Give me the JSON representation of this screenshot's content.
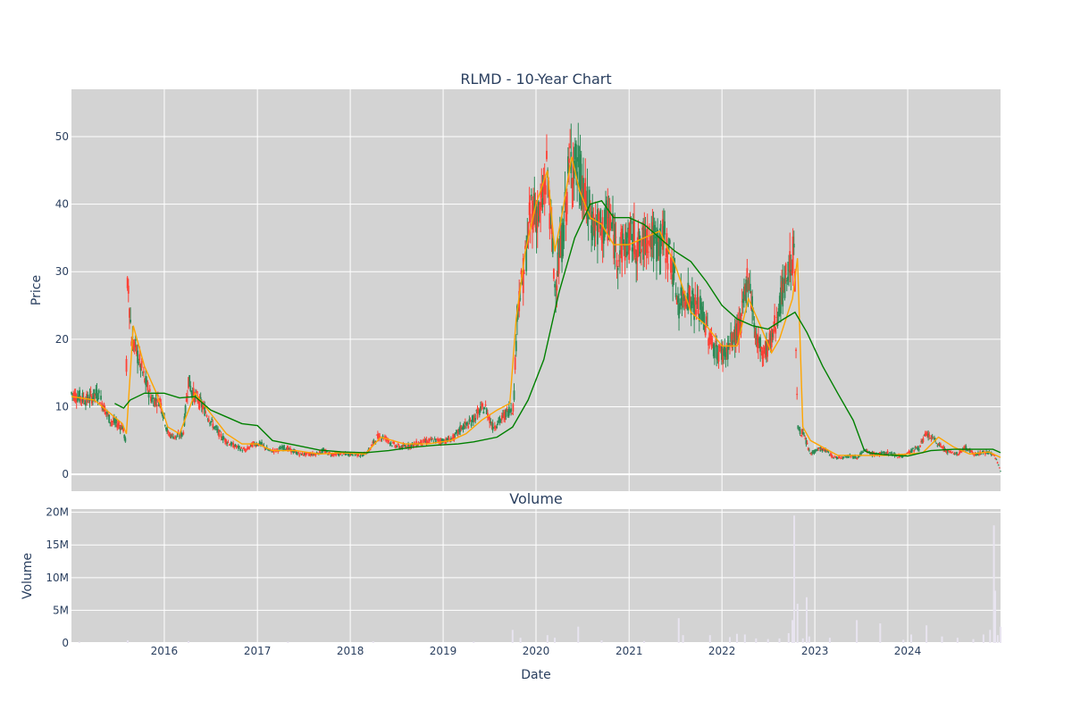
{
  "chart_data": [
    {
      "type": "line",
      "title": "RLMD - 10-Year Chart",
      "xlabel": "",
      "ylabel": "Price",
      "xlim": [
        "2015-01-01",
        "2024-12-31"
      ],
      "ylim": [
        -2.5,
        57
      ],
      "yticks": [
        0,
        10,
        20,
        30,
        40,
        50
      ],
      "grid": true,
      "colors": {
        "up": "#2e8b57",
        "down": "#ff4136",
        "sma50": "#ffa500",
        "sma200": "#008000",
        "background": "#d3d3d3"
      },
      "series": [
        {
          "key": "price",
          "x": [
            "2015-01-01",
            "2015-03-01",
            "2015-04-15",
            "2015-06-01",
            "2015-07-20",
            "2015-08-01",
            "2015-08-10",
            "2015-08-25",
            "2015-09-15",
            "2015-10-15",
            "2015-11-15",
            "2015-12-15",
            "2016-01-15",
            "2016-02-15",
            "2016-03-15",
            "2016-04-05",
            "2016-04-20",
            "2016-05-15",
            "2016-06-15",
            "2016-07-15",
            "2016-08-15",
            "2016-09-15",
            "2016-10-15",
            "2016-11-15",
            "2016-12-15",
            "2017-01-15",
            "2017-02-15",
            "2017-03-15",
            "2017-04-15",
            "2017-05-15",
            "2017-06-15",
            "2017-07-15",
            "2017-08-15",
            "2017-09-15",
            "2017-10-15",
            "2017-11-15",
            "2017-12-15",
            "2018-01-15",
            "2018-02-15",
            "2018-03-15",
            "2018-04-15",
            "2018-05-15",
            "2018-06-15",
            "2018-07-15",
            "2018-08-15",
            "2018-09-15",
            "2018-10-15",
            "2018-11-15",
            "2018-12-15",
            "2019-01-15",
            "2019-02-15",
            "2019-03-15",
            "2019-04-15",
            "2019-05-15",
            "2019-06-15",
            "2019-07-15",
            "2019-08-15",
            "2019-09-15",
            "2019-10-05",
            "2019-10-20",
            "2019-11-15",
            "2019-12-15",
            "2020-01-15",
            "2020-02-15",
            "2020-03-15",
            "2020-04-15",
            "2020-05-15",
            "2020-06-15",
            "2020-07-15",
            "2020-08-15",
            "2020-09-15",
            "2020-10-15",
            "2020-11-15",
            "2020-12-15",
            "2021-01-15",
            "2021-02-15",
            "2021-03-15",
            "2021-04-15",
            "2021-05-15",
            "2021-06-15",
            "2021-07-15",
            "2021-08-15",
            "2021-09-15",
            "2021-10-15",
            "2021-11-15",
            "2021-12-15",
            "2022-01-15",
            "2022-02-15",
            "2022-03-15",
            "2022-04-15",
            "2022-05-15",
            "2022-06-15",
            "2022-07-15",
            "2022-08-15",
            "2022-09-15",
            "2022-10-05",
            "2022-10-12",
            "2022-10-25",
            "2022-11-15",
            "2022-12-15",
            "2023-01-15",
            "2023-02-15",
            "2023-03-15",
            "2023-04-15",
            "2023-05-15",
            "2023-06-15",
            "2023-07-15",
            "2023-08-15",
            "2023-09-15",
            "2023-10-15",
            "2023-11-15",
            "2023-12-15",
            "2024-01-15",
            "2024-02-15",
            "2024-03-15",
            "2024-04-15",
            "2024-05-15",
            "2024-06-15",
            "2024-07-15",
            "2024-08-15",
            "2024-09-15",
            "2024-10-15",
            "2024-11-15",
            "2024-12-05",
            "2024-12-31"
          ],
          "values": [
            12,
            11,
            12,
            8,
            7,
            5,
            30,
            20,
            18,
            14,
            11,
            11,
            6,
            5.5,
            6,
            14,
            12,
            11,
            9,
            7,
            5.5,
            4.5,
            4,
            3.5,
            4.5,
            4.5,
            3.5,
            3.5,
            4,
            3.5,
            3,
            3,
            3,
            3.5,
            3,
            3,
            3,
            3,
            2.8,
            3.5,
            5.5,
            5.5,
            4.5,
            4,
            4.2,
            4.5,
            4.8,
            5,
            5,
            5,
            5.5,
            7,
            7.5,
            9,
            10,
            7,
            8,
            9.5,
            10,
            25,
            30,
            40,
            38,
            45,
            28,
            35,
            47,
            45,
            40,
            37,
            36,
            38,
            33,
            34,
            35,
            33,
            36,
            34,
            35,
            32,
            25,
            27,
            25,
            24,
            20,
            18,
            18,
            20,
            22,
            30,
            20,
            18,
            20,
            25,
            30,
            32,
            34,
            7,
            6,
            3,
            3.8,
            3.5,
            2.5,
            2.5,
            2.8,
            2.5,
            3.5,
            3,
            3,
            3.2,
            2.8,
            2.7,
            3.5,
            4,
            6,
            5,
            4,
            3.2,
            3,
            4,
            3,
            3.2,
            3.2,
            3,
            0.5
          ],
          "ohlc_style": "candlestick"
        },
        {
          "key": "sma50",
          "x": [
            "2015-01-01",
            "2015-04-01",
            "2015-07-20",
            "2015-08-05",
            "2015-09-01",
            "2015-10-15",
            "2015-12-01",
            "2016-01-15",
            "2016-03-01",
            "2016-05-01",
            "2016-07-01",
            "2016-09-01",
            "2016-11-01",
            "2017-01-01",
            "2017-03-01",
            "2017-06-01",
            "2017-09-01",
            "2017-12-01",
            "2018-03-01",
            "2018-05-01",
            "2018-08-01",
            "2018-11-01",
            "2019-02-01",
            "2019-04-01",
            "2019-06-01",
            "2019-08-01",
            "2019-09-20",
            "2019-10-15",
            "2019-11-20",
            "2020-01-01",
            "2020-02-15",
            "2020-03-15",
            "2020-04-15",
            "2020-05-20",
            "2020-06-20",
            "2020-08-01",
            "2020-09-15",
            "2020-11-01",
            "2021-01-01",
            "2021-03-01",
            "2021-05-01",
            "2021-07-01",
            "2021-09-01",
            "2021-11-01",
            "2022-01-01",
            "2022-03-01",
            "2022-04-15",
            "2022-06-01",
            "2022-07-15",
            "2022-08-15",
            "2022-10-05",
            "2022-10-25",
            "2022-11-15",
            "2022-12-15",
            "2023-02-01",
            "2023-04-01",
            "2023-07-01",
            "2023-10-01",
            "2024-01-01",
            "2024-03-01",
            "2024-05-01",
            "2024-07-01",
            "2024-09-01",
            "2024-11-15",
            "2024-12-31"
          ],
          "values": [
            11.5,
            11,
            7.5,
            6,
            22,
            16,
            12,
            7,
            6,
            12,
            9,
            6,
            4.5,
            4.5,
            3.5,
            3.5,
            3,
            3.2,
            3,
            5.5,
            4.5,
            4.5,
            5,
            6,
            8,
            9.5,
            10.5,
            23,
            33,
            40,
            45,
            33,
            39,
            47,
            42,
            38,
            37,
            34,
            34,
            35,
            36,
            31,
            24,
            22,
            19,
            19,
            26,
            22,
            18,
            20,
            26,
            32,
            7,
            5,
            4,
            2.8,
            2.8,
            2.8,
            3,
            3.2,
            5.5,
            4,
            3,
            3.3,
            2.5
          ],
          "ohlc_style": "line"
        },
        {
          "key": "sma200",
          "x": [
            "2015-06-20",
            "2015-07-25",
            "2015-08-20",
            "2015-10-15",
            "2016-01-01",
            "2016-03-01",
            "2016-05-01",
            "2016-07-01",
            "2016-09-01",
            "2016-11-01",
            "2017-01-01",
            "2017-03-01",
            "2017-06-01",
            "2017-09-01",
            "2017-12-01",
            "2018-03-01",
            "2018-06-01",
            "2018-09-01",
            "2018-12-01",
            "2019-03-01",
            "2019-05-01",
            "2019-08-01",
            "2019-10-01",
            "2019-12-01",
            "2020-02-01",
            "2020-04-01",
            "2020-06-01",
            "2020-08-01",
            "2020-09-15",
            "2020-11-01",
            "2021-01-01",
            "2021-03-01",
            "2021-05-01",
            "2021-07-01",
            "2021-09-01",
            "2021-11-01",
            "2022-01-01",
            "2022-03-01",
            "2022-05-01",
            "2022-07-01",
            "2022-09-01",
            "2022-10-15",
            "2022-12-01",
            "2023-02-01",
            "2023-04-01",
            "2023-06-01",
            "2023-07-15",
            "2023-08-01",
            "2023-10-01",
            "2024-01-01",
            "2024-04-01",
            "2024-07-01",
            "2024-10-01",
            "2024-12-01",
            "2024-12-31"
          ],
          "values": [
            10.5,
            9.8,
            11,
            12,
            12,
            11.3,
            11.5,
            9.5,
            8.5,
            7.5,
            7.2,
            5,
            4.3,
            3.6,
            3.3,
            3.2,
            3.5,
            4,
            4.3,
            4.5,
            4.8,
            5.5,
            7,
            11,
            17,
            27,
            35,
            40,
            40.5,
            38,
            38,
            37,
            35,
            33,
            31.5,
            28.5,
            25,
            23,
            22,
            21.5,
            23,
            24,
            21,
            16,
            12,
            8,
            3.5,
            3.2,
            2.9,
            2.7,
            3.5,
            3.7,
            3.7,
            3.7,
            3.2
          ],
          "ohlc_style": "line"
        }
      ]
    },
    {
      "type": "bar",
      "title": "Volume",
      "xlabel": "Date",
      "ylabel": "Volume",
      "xlim": [
        "2015-01-01",
        "2024-12-31"
      ],
      "ylim": [
        0,
        20500000
      ],
      "yticks": [
        0,
        5000000,
        10000000,
        15000000,
        20000000
      ],
      "ytick_labels": [
        "0",
        "5M",
        "10M",
        "15M",
        "20M"
      ],
      "xticks": [
        "2016-01-01",
        "2017-01-01",
        "2018-01-01",
        "2019-01-01",
        "2020-01-01",
        "2021-01-01",
        "2022-01-01",
        "2023-01-01",
        "2024-01-01"
      ],
      "xtick_labels": [
        "2016",
        "2017",
        "2018",
        "2019",
        "2020",
        "2021",
        "2022",
        "2023",
        "2024"
      ],
      "grid": true,
      "color": "#e8e4f0",
      "x": [
        "2015-02-01",
        "2015-08-10",
        "2016-04-05",
        "2017-05-01",
        "2018-04-01",
        "2019-05-01",
        "2019-10-01",
        "2019-11-01",
        "2020-02-15",
        "2020-03-15",
        "2020-06-15",
        "2020-09-15",
        "2021-03-01",
        "2021-07-15",
        "2021-08-01",
        "2021-11-15",
        "2022-02-01",
        "2022-03-01",
        "2022-04-01",
        "2022-05-15",
        "2022-07-01",
        "2022-08-15",
        "2022-09-20",
        "2022-10-05",
        "2022-10-12",
        "2022-10-25",
        "2022-11-15",
        "2022-11-30",
        "2022-12-10",
        "2023-03-01",
        "2023-06-15",
        "2023-09-15",
        "2023-12-15",
        "2024-01-15",
        "2024-03-15",
        "2024-05-15",
        "2024-07-15",
        "2024-09-15",
        "2024-10-25",
        "2024-11-20",
        "2024-12-05",
        "2024-12-10",
        "2024-12-20",
        "2024-12-31"
      ],
      "values": [
        200000,
        400000,
        300000,
        200000,
        250000,
        200000,
        2000000,
        800000,
        1200000,
        800000,
        2500000,
        400000,
        300000,
        3800000,
        1200000,
        1200000,
        900000,
        1400000,
        1300000,
        700000,
        600000,
        700000,
        1500000,
        3500000,
        19500000,
        6000000,
        700000,
        7000000,
        1000000,
        800000,
        3500000,
        3000000,
        500000,
        1300000,
        2700000,
        1000000,
        800000,
        600000,
        1300000,
        2000000,
        18000000,
        8000000,
        1200000,
        2500000
      ]
    }
  ]
}
